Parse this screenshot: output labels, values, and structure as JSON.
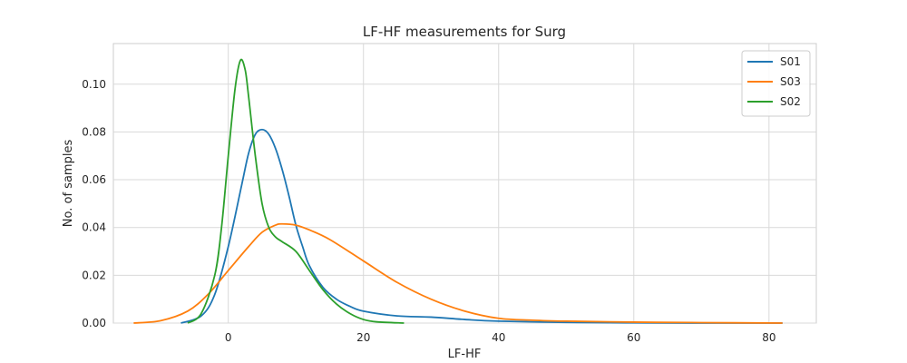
{
  "chart_data": {
    "type": "line",
    "title": "LF-HF measurements for Surg",
    "xlabel": "LF-HF",
    "ylabel": "No. of samples",
    "xlim": [
      -17,
      87
    ],
    "ylim": [
      0,
      0.117
    ],
    "xticks": [
      0,
      20,
      40,
      60,
      80
    ],
    "yticks": [
      0.0,
      0.02,
      0.04,
      0.06,
      0.08,
      0.1
    ],
    "ytick_labels": [
      "0.00",
      "0.02",
      "0.04",
      "0.06",
      "0.08",
      "0.10"
    ],
    "grid": true,
    "legend_position": "top-right",
    "series": [
      {
        "name": "S01",
        "color": "#1f77b4",
        "points": [
          [
            -7,
            0
          ],
          [
            -4,
            0.003
          ],
          [
            -2,
            0.012
          ],
          [
            0,
            0.032
          ],
          [
            2,
            0.058
          ],
          [
            3,
            0.071
          ],
          [
            4,
            0.079
          ],
          [
            5,
            0.081
          ],
          [
            6,
            0.079
          ],
          [
            7,
            0.073
          ],
          [
            8,
            0.064
          ],
          [
            9,
            0.053
          ],
          [
            10,
            0.041
          ],
          [
            11,
            0.032
          ],
          [
            12,
            0.024
          ],
          [
            14,
            0.015
          ],
          [
            16,
            0.01
          ],
          [
            18,
            0.007
          ],
          [
            20,
            0.005
          ],
          [
            25,
            0.003
          ],
          [
            30,
            0.0025
          ],
          [
            35,
            0.0015
          ],
          [
            40,
            0.0008
          ],
          [
            50,
            0.0003
          ],
          [
            60,
            0.0001
          ],
          [
            70,
            0
          ],
          [
            82,
            0
          ]
        ]
      },
      {
        "name": "S03",
        "color": "#ff7f0e",
        "points": [
          [
            -14,
            0
          ],
          [
            -10,
            0.001
          ],
          [
            -6,
            0.005
          ],
          [
            -3,
            0.012
          ],
          [
            0,
            0.022
          ],
          [
            3,
            0.032
          ],
          [
            5,
            0.038
          ],
          [
            7,
            0.041
          ],
          [
            8,
            0.0415
          ],
          [
            10,
            0.041
          ],
          [
            12,
            0.039
          ],
          [
            15,
            0.035
          ],
          [
            20,
            0.026
          ],
          [
            25,
            0.017
          ],
          [
            30,
            0.01
          ],
          [
            35,
            0.005
          ],
          [
            40,
            0.002
          ],
          [
            45,
            0.0012
          ],
          [
            50,
            0.0008
          ],
          [
            60,
            0.0004
          ],
          [
            70,
            0.0002
          ],
          [
            82,
            0
          ]
        ]
      },
      {
        "name": "S02",
        "color": "#2ca02c",
        "points": [
          [
            -6,
            0
          ],
          [
            -4,
            0.004
          ],
          [
            -2,
            0.02
          ],
          [
            -1,
            0.04
          ],
          [
            0,
            0.07
          ],
          [
            1,
            0.098
          ],
          [
            1.8,
            0.11
          ],
          [
            2.5,
            0.106
          ],
          [
            3,
            0.095
          ],
          [
            4,
            0.07
          ],
          [
            5,
            0.05
          ],
          [
            6,
            0.04
          ],
          [
            7,
            0.036
          ],
          [
            8,
            0.034
          ],
          [
            10,
            0.03
          ],
          [
            12,
            0.022
          ],
          [
            14,
            0.014
          ],
          [
            16,
            0.008
          ],
          [
            18,
            0.004
          ],
          [
            20,
            0.0015
          ],
          [
            22,
            0.0005
          ],
          [
            26,
            0
          ]
        ]
      }
    ]
  }
}
